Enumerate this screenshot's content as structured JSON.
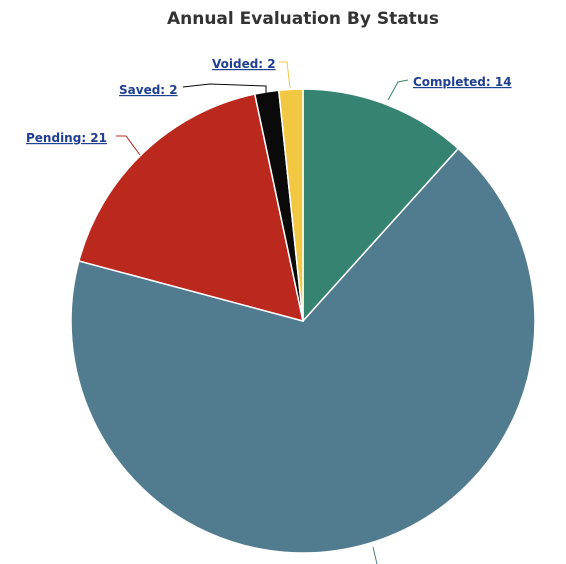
{
  "chart_data": {
    "type": "pie",
    "title": "Annual Evaluation By Status",
    "series": [
      {
        "name": "",
        "data": [
          {
            "label": "Completed",
            "value": 14,
            "display": "Completed: 14",
            "color": "#378371"
          },
          {
            "label": "",
            "value": 81,
            "display": "",
            "color": "#517c8f"
          },
          {
            "label": "Pending",
            "value": 21,
            "display": "Pending: 21",
            "color": "#bb281d"
          },
          {
            "label": "Saved",
            "value": 2,
            "display": "Saved: 2",
            "color": "#0a0a0a"
          },
          {
            "label": "Voided",
            "value": 2,
            "display": "Voided: 2",
            "color": "#f2c842"
          }
        ]
      }
    ],
    "legend": "none"
  }
}
